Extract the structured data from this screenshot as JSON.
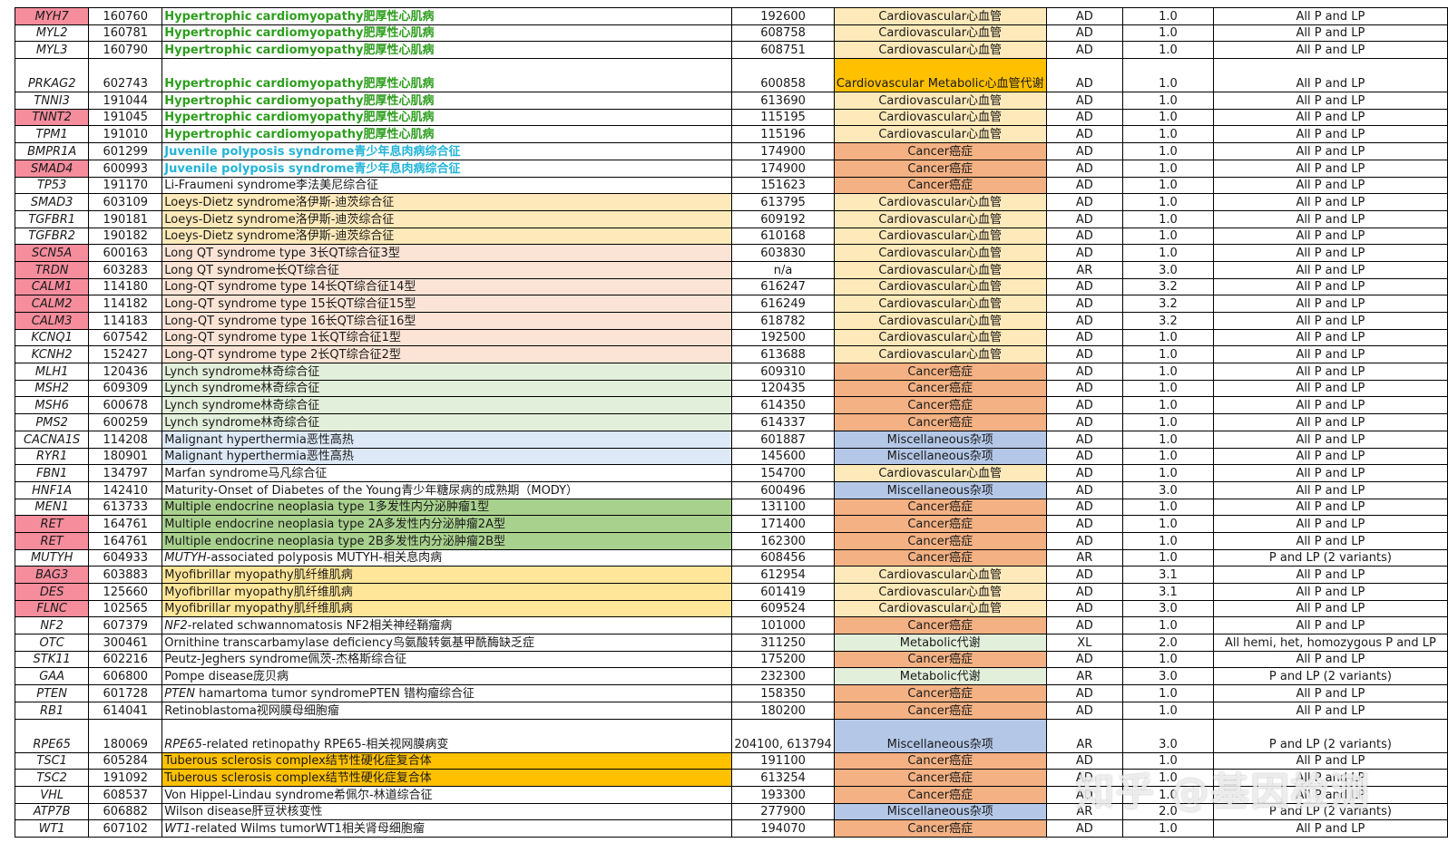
{
  "colors": {
    "gene_pink": "#f58d9d",
    "dis_green_text": "#2e9e1e",
    "dis_cyan_text": "#22b4d8",
    "loeys_bg": "#fde9b9",
    "longqt_bg": "#fbe4d6",
    "lynch_bg": "#e2efda",
    "malig_bg": "#dde9f7",
    "men_bg": "#a9d18e",
    "myo_bg": "#ffe699",
    "tsc_bg": "#ffc000",
    "cat_cardio": "#fde9b9",
    "cat_cancer": "#f4b183",
    "cat_misc": "#b4c7e7",
    "cat_metab": "#e2efda",
    "cat_cardiometab": "#ffc000"
  },
  "watermark": "知乎 @基因检测",
  "rows": [
    {
      "gene": "MYH7",
      "mim": "160760",
      "disease": "Hypertrophic cardiomyopathy肥厚性心肌病",
      "pmim": "192600",
      "category": "Cardiovascular心血管",
      "inh": "AD",
      "ver": "1.0",
      "report": "All P and LP",
      "gene_pink": true,
      "dis_style": "green",
      "cat_style": "cardio"
    },
    {
      "gene": "MYL2",
      "mim": "160781",
      "disease": "Hypertrophic cardiomyopathy肥厚性心肌病",
      "pmim": "608758",
      "category": "Cardiovascular心血管",
      "inh": "AD",
      "ver": "1.0",
      "report": "All P and LP",
      "gene_pink": false,
      "dis_style": "green",
      "cat_style": "cardio"
    },
    {
      "gene": "MYL3",
      "mim": "160790",
      "disease": "Hypertrophic cardiomyopathy肥厚性心肌病",
      "pmim": "608751",
      "category": "Cardiovascular心血管",
      "inh": "AD",
      "ver": "1.0",
      "report": "All P and LP",
      "gene_pink": false,
      "dis_style": "green",
      "cat_style": "cardio"
    },
    {
      "gene": "PRKAG2",
      "mim": "602743",
      "disease": "Hypertrophic cardiomyopathy肥厚性心肌病",
      "pmim": "600858",
      "category": "Cardiovascular Metabolic心血管代谢",
      "inh": "AD",
      "ver": "1.0",
      "report": "All P and LP",
      "gene_pink": false,
      "dis_style": "green",
      "cat_style": "cardiometab",
      "tall": true
    },
    {
      "gene": "TNNI3",
      "mim": "191044",
      "disease": "Hypertrophic cardiomyopathy肥厚性心肌病",
      "pmim": "613690",
      "category": "Cardiovascular心血管",
      "inh": "AD",
      "ver": "1.0",
      "report": "All P and LP",
      "gene_pink": false,
      "dis_style": "green",
      "cat_style": "cardio"
    },
    {
      "gene": "TNNT2",
      "mim": "191045",
      "disease": "Hypertrophic cardiomyopathy肥厚性心肌病",
      "pmim": "115195",
      "category": "Cardiovascular心血管",
      "inh": "AD",
      "ver": "1.0",
      "report": "All P and LP",
      "gene_pink": true,
      "dis_style": "green",
      "cat_style": "cardio"
    },
    {
      "gene": "TPM1",
      "mim": "191010",
      "disease": "Hypertrophic cardiomyopathy肥厚性心肌病",
      "pmim": "115196",
      "category": "Cardiovascular心血管",
      "inh": "AD",
      "ver": "1.0",
      "report": "All P and LP",
      "gene_pink": false,
      "dis_style": "green",
      "cat_style": "cardio"
    },
    {
      "gene": "BMPR1A",
      "mim": "601299",
      "disease": "Juvenile polyposis syndrome青少年息肉病综合征",
      "pmim": "174900",
      "category": "Cancer癌症",
      "inh": "AD",
      "ver": "1.0",
      "report": "All P and LP",
      "gene_pink": false,
      "dis_style": "cyan",
      "cat_style": "cancer"
    },
    {
      "gene": "SMAD4",
      "mim": "600993",
      "disease": "Juvenile polyposis syndrome青少年息肉病综合征",
      "pmim": "174900",
      "category": "Cancer癌症",
      "inh": "AD",
      "ver": "1.0",
      "report": "All P and LP",
      "gene_pink": true,
      "dis_style": "cyan",
      "cat_style": "cancer"
    },
    {
      "gene": "TP53",
      "mim": "191170",
      "disease": "Li-Fraumeni syndrome李法美尼综合征",
      "pmim": "151623",
      "category": "Cancer癌症",
      "inh": "AD",
      "ver": "1.0",
      "report": "All P and LP",
      "gene_pink": false,
      "dis_style": "plain",
      "cat_style": "cancer"
    },
    {
      "gene": "SMAD3",
      "mim": "603109",
      "disease": "Loeys-Dietz syndrome洛伊斯-迪茨综合征",
      "pmim": "613795",
      "category": "Cardiovascular心血管",
      "inh": "AD",
      "ver": "1.0",
      "report": "All P and LP",
      "gene_pink": false,
      "dis_style": "loeys",
      "cat_style": "cardio"
    },
    {
      "gene": "TGFBR1",
      "mim": "190181",
      "disease": "Loeys-Dietz syndrome洛伊斯-迪茨综合征",
      "pmim": "609192",
      "category": "Cardiovascular心血管",
      "inh": "AD",
      "ver": "1.0",
      "report": "All P and LP",
      "gene_pink": false,
      "dis_style": "loeys",
      "cat_style": "cardio"
    },
    {
      "gene": "TGFBR2",
      "mim": "190182",
      "disease": "Loeys-Dietz syndrome洛伊斯-迪茨综合征",
      "pmim": "610168",
      "category": "Cardiovascular心血管",
      "inh": "AD",
      "ver": "1.0",
      "report": "All P and LP",
      "gene_pink": false,
      "dis_style": "loeys",
      "cat_style": "cardio"
    },
    {
      "gene": "SCN5A",
      "mim": "600163",
      "disease": "Long QT syndrome type 3长QT综合征3型",
      "pmim": "603830",
      "category": "Cardiovascular心血管",
      "inh": "AD",
      "ver": "1.0",
      "report": "All P and LP",
      "gene_pink": true,
      "dis_style": "longqt",
      "cat_style": "cardio"
    },
    {
      "gene": "TRDN",
      "mim": "603283",
      "disease": "Long QT syndrome长QT综合征",
      "pmim": "n/a",
      "category": "Cardiovascular心血管",
      "inh": "AR",
      "ver": "3.0",
      "report": "All P and LP",
      "gene_pink": true,
      "dis_style": "longqt",
      "cat_style": "cardio"
    },
    {
      "gene": "CALM1",
      "mim": "114180",
      "disease": "Long-QT syndrome type 14长QT综合征14型",
      "pmim": "616247",
      "category": "Cardiovascular心血管",
      "inh": "AD",
      "ver": "3.2",
      "report": "All P and LP",
      "gene_pink": true,
      "dis_style": "longqt",
      "cat_style": "cardio"
    },
    {
      "gene": "CALM2",
      "mim": "114182",
      "disease": "Long-QT syndrome type 15长QT综合征15型",
      "pmim": "616249",
      "category": "Cardiovascular心血管",
      "inh": "AD",
      "ver": "3.2",
      "report": "All P and LP",
      "gene_pink": true,
      "dis_style": "longqt",
      "cat_style": "cardio"
    },
    {
      "gene": "CALM3",
      "mim": "114183",
      "disease": "Long-QT syndrome type 16长QT综合征16型",
      "pmim": "618782",
      "category": "Cardiovascular心血管",
      "inh": "AD",
      "ver": "3.2",
      "report": "All P and LP",
      "gene_pink": true,
      "dis_style": "longqt",
      "cat_style": "cardio"
    },
    {
      "gene": "KCNQ1",
      "mim": "607542",
      "disease": "Long-QT syndrome type 1长QT综合征1型",
      "pmim": "192500",
      "category": "Cardiovascular心血管",
      "inh": "AD",
      "ver": "1.0",
      "report": "All P and LP",
      "gene_pink": false,
      "dis_style": "longqt",
      "cat_style": "cardio"
    },
    {
      "gene": "KCNH2",
      "mim": "152427",
      "disease": "Long-QT syndrome type 2长QT综合征2型",
      "pmim": "613688",
      "category": "Cardiovascular心血管",
      "inh": "AD",
      "ver": "1.0",
      "report": "All P and LP",
      "gene_pink": false,
      "dis_style": "longqt",
      "cat_style": "cardio"
    },
    {
      "gene": "MLH1",
      "mim": "120436",
      "disease": "Lynch syndrome林奇综合征",
      "pmim": "609310",
      "category": "Cancer癌症",
      "inh": "AD",
      "ver": "1.0",
      "report": "All P and LP",
      "gene_pink": false,
      "dis_style": "lynch",
      "cat_style": "cancer"
    },
    {
      "gene": "MSH2",
      "mim": "609309",
      "disease": "Lynch syndrome林奇综合征",
      "pmim": "120435",
      "category": "Cancer癌症",
      "inh": "AD",
      "ver": "1.0",
      "report": "All P and LP",
      "gene_pink": false,
      "dis_style": "lynch",
      "cat_style": "cancer"
    },
    {
      "gene": "MSH6",
      "mim": "600678",
      "disease": "Lynch syndrome林奇综合征",
      "pmim": "614350",
      "category": "Cancer癌症",
      "inh": "AD",
      "ver": "1.0",
      "report": "All P and LP",
      "gene_pink": false,
      "dis_style": "lynch",
      "cat_style": "cancer"
    },
    {
      "gene": "PMS2",
      "mim": "600259",
      "disease": "Lynch syndrome林奇综合征",
      "pmim": "614337",
      "category": "Cancer癌症",
      "inh": "AD",
      "ver": "1.0",
      "report": "All P and LP",
      "gene_pink": false,
      "dis_style": "lynch",
      "cat_style": "cancer"
    },
    {
      "gene": "CACNA1S",
      "mim": "114208",
      "disease": "Malignant hyperthermia恶性高热",
      "pmim": "601887",
      "category": "Miscellaneous杂项",
      "inh": "AD",
      "ver": "1.0",
      "report": "All P and LP",
      "gene_pink": false,
      "dis_style": "malig",
      "cat_style": "misc"
    },
    {
      "gene": "RYR1",
      "mim": "180901",
      "disease": "Malignant hyperthermia恶性高热",
      "pmim": "145600",
      "category": "Miscellaneous杂项",
      "inh": "AD",
      "ver": "1.0",
      "report": "All P and LP",
      "gene_pink": false,
      "dis_style": "malig",
      "cat_style": "misc"
    },
    {
      "gene": "FBN1",
      "mim": "134797",
      "disease": "Marfan syndrome马凡综合征",
      "pmim": "154700",
      "category": "Cardiovascular心血管",
      "inh": "AD",
      "ver": "1.0",
      "report": "All P and LP",
      "gene_pink": false,
      "dis_style": "plain",
      "cat_style": "cardio"
    },
    {
      "gene": "HNF1A",
      "mim": "142410",
      "disease": "Maturity-Onset of Diabetes of the Young青少年糖尿病的成熟期（MODY）",
      "pmim": "600496",
      "category": "Miscellaneous杂项",
      "inh": "AD",
      "ver": "3.0",
      "report": "All P and LP",
      "gene_pink": false,
      "dis_style": "plain",
      "cat_style": "misc"
    },
    {
      "gene": "MEN1",
      "mim": "613733",
      "disease": "Multiple endocrine neoplasia type 1多发性内分泌肿瘤1型",
      "pmim": "131100",
      "category": "Cancer癌症",
      "inh": "AD",
      "ver": "1.0",
      "report": "All P and LP",
      "gene_pink": false,
      "dis_style": "men",
      "cat_style": "cancer"
    },
    {
      "gene": "RET",
      "mim": "164761",
      "disease": "Multiple endocrine neoplasia type 2A多发性内分泌肿瘤2A型",
      "pmim": "171400",
      "category": "Cancer癌症",
      "inh": "AD",
      "ver": "1.0",
      "report": "All P and LP",
      "gene_pink": true,
      "dis_style": "men",
      "cat_style": "cancer"
    },
    {
      "gene": "RET",
      "mim": "164761",
      "disease": "Multiple endocrine neoplasia type 2B多发性内分泌肿瘤2B型",
      "pmim": "162300",
      "category": "Cancer癌症",
      "inh": "AD",
      "ver": "1.0",
      "report": "All P and LP",
      "gene_pink": true,
      "dis_style": "men",
      "cat_style": "cancer"
    },
    {
      "gene": "MUTYH",
      "mim": "604933",
      "disease_italic": "MUTYH",
      "disease": "-associated polyposis MUTYH-相关息肉病",
      "pmim": "608456",
      "category": "Cancer癌症",
      "inh": "AR",
      "ver": "1.0",
      "report": "P and LP (2 variants)",
      "gene_pink": false,
      "dis_style": "plain",
      "cat_style": "cancer"
    },
    {
      "gene": "BAG3",
      "mim": "603883",
      "disease": "Myofibrillar myopathy肌纤维肌病",
      "pmim": "612954",
      "category": "Cardiovascular心血管",
      "inh": "AD",
      "ver": "3.1",
      "report": "All P and LP",
      "gene_pink": true,
      "dis_style": "myo",
      "cat_style": "cardio"
    },
    {
      "gene": "DES",
      "mim": "125660",
      "disease": "Myofibrillar myopathy肌纤维肌病",
      "pmim": "601419",
      "category": "Cardiovascular心血管",
      "inh": "AD",
      "ver": "3.1",
      "report": "All P and LP",
      "gene_pink": true,
      "dis_style": "myo",
      "cat_style": "cardio"
    },
    {
      "gene": "FLNC",
      "mim": "102565",
      "disease": "Myofibrillar myopathy肌纤维肌病",
      "pmim": "609524",
      "category": "Cardiovascular心血管",
      "inh": "AD",
      "ver": "3.0",
      "report": "All P and LP",
      "gene_pink": true,
      "dis_style": "myo",
      "cat_style": "cardio"
    },
    {
      "gene": "NF2",
      "mim": "607379",
      "disease_italic": "NF2",
      "disease": "-related schwannomatosis NF2相关神经鞘瘤病",
      "pmim": "101000",
      "category": "Cancer癌症",
      "inh": "AD",
      "ver": "1.0",
      "report": "All P and LP",
      "gene_pink": false,
      "dis_style": "plain",
      "cat_style": "cancer"
    },
    {
      "gene": "OTC",
      "mim": "300461",
      "disease": "Ornithine transcarbamylase deficiency鸟氨酸转氨基甲酰酶缺乏症",
      "pmim": "311250",
      "category": "Metabolic代谢",
      "inh": "XL",
      "ver": "2.0",
      "report": "All hemi, het, homozygous P and LP",
      "gene_pink": false,
      "dis_style": "plain",
      "cat_style": "metab"
    },
    {
      "gene": "STK11",
      "mim": "602216",
      "disease": "Peutz-Jeghers syndrome佩茨-杰格斯综合征",
      "pmim": "175200",
      "category": "Cancer癌症",
      "inh": "AD",
      "ver": "1.0",
      "report": "All P and LP",
      "gene_pink": false,
      "dis_style": "plain",
      "cat_style": "cancer"
    },
    {
      "gene": "GAA",
      "mim": "606800",
      "disease": "Pompe disease庞贝病",
      "pmim": "232300",
      "category": "Metabolic代谢",
      "inh": "AR",
      "ver": "3.0",
      "report": "P and LP (2 variants)",
      "gene_pink": false,
      "dis_style": "plain",
      "cat_style": "metab"
    },
    {
      "gene": "PTEN",
      "mim": "601728",
      "disease_italic": "PTEN",
      "disease": " hamartoma tumor syndromePTEN 错构瘤综合征",
      "pmim": "158350",
      "category": "Cancer癌症",
      "inh": "AD",
      "ver": "1.0",
      "report": "All P and LP",
      "gene_pink": false,
      "dis_style": "plain",
      "cat_style": "cancer"
    },
    {
      "gene": "RB1",
      "mim": "614041",
      "disease": "Retinoblastoma视网膜母细胞瘤",
      "pmim": "180200",
      "category": "Cancer癌症",
      "inh": "AD",
      "ver": "1.0",
      "report": "All P and LP",
      "gene_pink": false,
      "dis_style": "plain",
      "cat_style": "cancer"
    },
    {
      "gene": "RPE65",
      "mim": "180069",
      "disease_italic": "RPE65",
      "disease": "-related retinopathy RPE65-相关视网膜病变",
      "pmim": "204100, 613794",
      "category": "Miscellaneous杂项",
      "inh": "AR",
      "ver": "3.0",
      "report": "P and LP (2 variants)",
      "gene_pink": false,
      "dis_style": "plain",
      "cat_style": "misc",
      "tall": true
    },
    {
      "gene": "TSC1",
      "mim": "605284",
      "disease": "Tuberous sclerosis complex结节性硬化症复合体",
      "pmim": "191100",
      "category": "Cancer癌症",
      "inh": "AD",
      "ver": "1.0",
      "report": "All P and LP",
      "gene_pink": false,
      "dis_style": "tsc",
      "cat_style": "cancer"
    },
    {
      "gene": "TSC2",
      "mim": "191092",
      "disease": "Tuberous sclerosis complex结节性硬化症复合体",
      "pmim": "613254",
      "category": "Cancer癌症",
      "inh": "AD",
      "ver": "1.0",
      "report": "All P and LP",
      "gene_pink": false,
      "dis_style": "tsc",
      "cat_style": "cancer"
    },
    {
      "gene": "VHL",
      "mim": "608537",
      "disease": "Von Hippel-Lindau syndrome希佩尔-林道综合征",
      "pmim": "193300",
      "category": "Cancer癌症",
      "inh": "AD",
      "ver": "1.0",
      "report": "All P and LP",
      "gene_pink": false,
      "dis_style": "plain",
      "cat_style": "cancer"
    },
    {
      "gene": "ATP7B",
      "mim": "606882",
      "disease": "Wilson disease肝豆状核变性",
      "pmim": "277900",
      "category": "Miscellaneous杂项",
      "inh": "AR",
      "ver": "2.0",
      "report": "P and LP (2 variants)",
      "gene_pink": false,
      "dis_style": "plain",
      "cat_style": "misc"
    },
    {
      "gene": "WT1",
      "mim": "607102",
      "disease_italic": "WT1",
      "disease": "-related Wilms tumorWT1相关肾母细胞瘤",
      "pmim": "194070",
      "category": "Cancer癌症",
      "inh": "AD",
      "ver": "1.0",
      "report": "All P and LP",
      "gene_pink": false,
      "dis_style": "plain",
      "cat_style": "cancer"
    }
  ]
}
